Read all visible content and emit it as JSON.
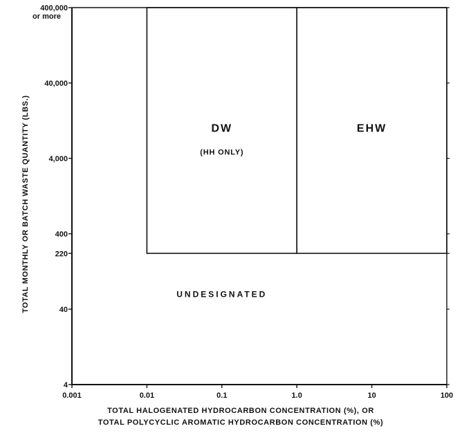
{
  "chart_data": {
    "type": "area",
    "title": "",
    "xlabel": [
      "TOTAL HALOGENATED HYDROCARBON CONCENTRATION (%), OR",
      "TOTAL POLYCYCLIC AROMATIC HYDROCARBON CONCENTRATION (%)"
    ],
    "ylabel": "TOTAL MONTHLY OR BATCH WASTE QUANTITY (LBS.)",
    "x_scale": "log",
    "y_scale": "log",
    "xlim": [
      0.001,
      100
    ],
    "ylim": [
      4,
      400000
    ],
    "x_ticks": [
      {
        "value": 0.001,
        "label": "0.001"
      },
      {
        "value": 0.01,
        "label": "0.01"
      },
      {
        "value": 0.1,
        "label": "0.1"
      },
      {
        "value": 1,
        "label": "1.0"
      },
      {
        "value": 10,
        "label": "10"
      },
      {
        "value": 100,
        "label": "100"
      }
    ],
    "y_ticks": [
      {
        "value": 4,
        "label": "4"
      },
      {
        "value": 40,
        "label": "40"
      },
      {
        "value": 220,
        "label": "220"
      },
      {
        "value": 400,
        "label": "400"
      },
      {
        "value": 4000,
        "label": "4,000"
      },
      {
        "value": 40000,
        "label": "40,000"
      },
      {
        "value": 400000,
        "label": "400,000",
        "sublabel": "or more"
      }
    ],
    "grid": false,
    "regions": [
      {
        "name": "DW",
        "sublabel": "(HH ONLY)",
        "x_range": [
          0.01,
          1
        ],
        "y_range": [
          220,
          400000
        ],
        "label_at": {
          "x": 0.1,
          "y": 9000
        },
        "sub_at": {
          "x": 0.1,
          "y": 4500
        }
      },
      {
        "name": "EHW",
        "sublabel": "",
        "x_range": [
          1,
          100
        ],
        "y_range": [
          220,
          400000
        ],
        "label_at": {
          "x": 10,
          "y": 9000
        }
      },
      {
        "name": "UNDESIGNATED",
        "sublabel": "",
        "x_range": [
          0.001,
          100
        ],
        "y_range": [
          4,
          220
        ],
        "label_at": {
          "x": 0.1,
          "y": 58
        }
      }
    ]
  }
}
